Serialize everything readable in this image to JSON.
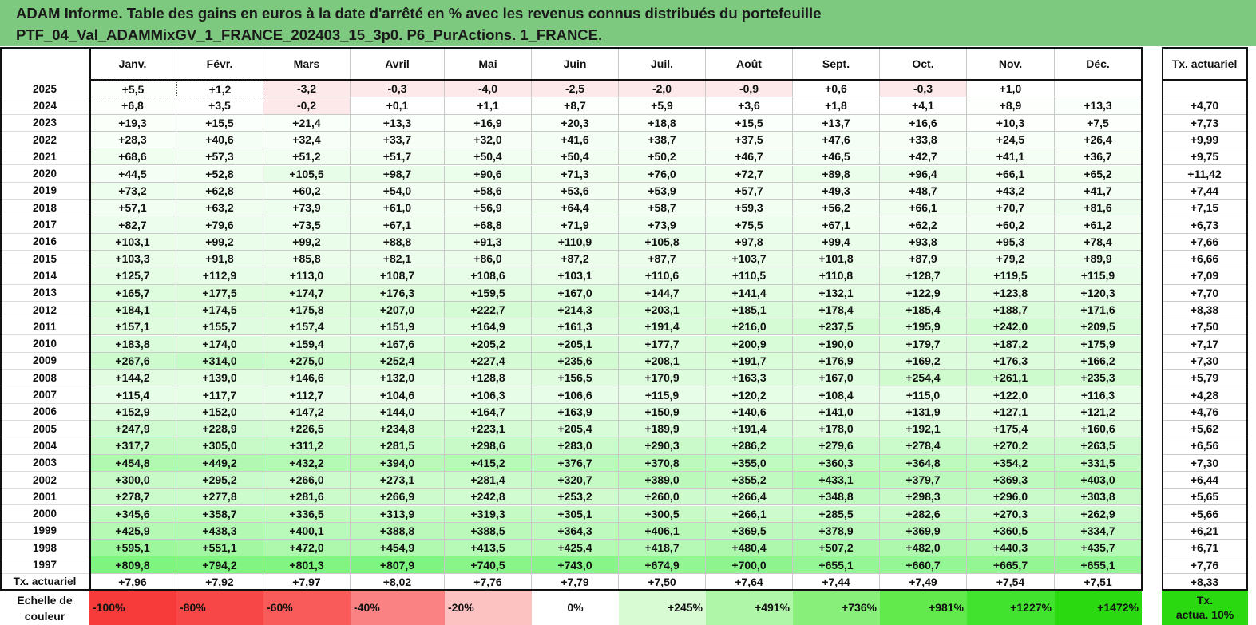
{
  "title_line1": "ADAM Informe. Table des gains en euros à la date d'arrêté en % avec les revenus connus distribués du portefeuille",
  "title_line2": "PTF_04_Val_ADAMMixGV_1_FRANCE_202403_15_3p0. P6_PurActions. 1_FRANCE.",
  "months": [
    "Janv.",
    "Févr.",
    "Mars",
    "Avril",
    "Mai",
    "Juin",
    "Juil.",
    "Août",
    "Sept.",
    "Oct.",
    "Nov.",
    "Déc."
  ],
  "rate_header": "Tx. actuariel",
  "rows": [
    {
      "year": "2025",
      "values": [
        "+5,5",
        "+1,2",
        "-3,2",
        "-0,3",
        "-4,0",
        "-2,5",
        "-2,0",
        "-0,9",
        "+0,6",
        "-0,3",
        "+1,0",
        ""
      ],
      "rate": ""
    },
    {
      "year": "2024",
      "values": [
        "+6,8",
        "+3,5",
        "-0,2",
        "+0,1",
        "+1,1",
        "+8,7",
        "+5,9",
        "+3,6",
        "+1,8",
        "+4,1",
        "+8,9",
        "+13,3"
      ],
      "rate": "+4,70"
    },
    {
      "year": "2023",
      "values": [
        "+19,3",
        "+15,5",
        "+21,4",
        "+13,3",
        "+16,9",
        "+20,3",
        "+18,8",
        "+15,5",
        "+13,7",
        "+16,6",
        "+10,3",
        "+7,5"
      ],
      "rate": "+7,73"
    },
    {
      "year": "2022",
      "values": [
        "+28,3",
        "+40,6",
        "+32,4",
        "+33,7",
        "+32,0",
        "+41,6",
        "+38,7",
        "+37,5",
        "+47,6",
        "+33,8",
        "+24,5",
        "+26,4"
      ],
      "rate": "+9,99"
    },
    {
      "year": "2021",
      "values": [
        "+68,6",
        "+57,3",
        "+51,2",
        "+51,7",
        "+50,4",
        "+50,4",
        "+50,2",
        "+46,7",
        "+46,5",
        "+42,7",
        "+41,1",
        "+36,7"
      ],
      "rate": "+9,75"
    },
    {
      "year": "2020",
      "values": [
        "+44,5",
        "+52,8",
        "+105,5",
        "+98,7",
        "+90,6",
        "+71,3",
        "+76,0",
        "+72,7",
        "+89,8",
        "+96,4",
        "+66,1",
        "+65,2"
      ],
      "rate": "+11,42"
    },
    {
      "year": "2019",
      "values": [
        "+73,2",
        "+62,8",
        "+60,2",
        "+54,0",
        "+58,6",
        "+53,6",
        "+53,9",
        "+57,7",
        "+49,3",
        "+48,7",
        "+43,2",
        "+41,7"
      ],
      "rate": "+7,44"
    },
    {
      "year": "2018",
      "values": [
        "+57,1",
        "+63,2",
        "+73,9",
        "+61,0",
        "+56,9",
        "+64,4",
        "+58,7",
        "+59,3",
        "+56,2",
        "+66,1",
        "+70,7",
        "+81,6"
      ],
      "rate": "+7,15"
    },
    {
      "year": "2017",
      "values": [
        "+82,7",
        "+79,6",
        "+73,5",
        "+67,1",
        "+68,8",
        "+71,9",
        "+73,9",
        "+75,5",
        "+67,1",
        "+62,2",
        "+60,2",
        "+61,2"
      ],
      "rate": "+6,73"
    },
    {
      "year": "2016",
      "values": [
        "+103,1",
        "+99,2",
        "+99,2",
        "+88,8",
        "+91,3",
        "+110,9",
        "+105,8",
        "+97,8",
        "+99,4",
        "+93,8",
        "+95,3",
        "+78,4"
      ],
      "rate": "+7,66"
    },
    {
      "year": "2015",
      "values": [
        "+103,3",
        "+91,8",
        "+85,8",
        "+82,1",
        "+86,0",
        "+87,2",
        "+87,7",
        "+103,7",
        "+101,8",
        "+87,9",
        "+79,2",
        "+89,9"
      ],
      "rate": "+6,66"
    },
    {
      "year": "2014",
      "values": [
        "+125,7",
        "+112,9",
        "+113,0",
        "+108,7",
        "+108,6",
        "+103,1",
        "+110,6",
        "+110,5",
        "+110,8",
        "+128,7",
        "+119,5",
        "+115,9"
      ],
      "rate": "+7,09"
    },
    {
      "year": "2013",
      "values": [
        "+165,7",
        "+177,5",
        "+174,7",
        "+176,3",
        "+159,5",
        "+167,0",
        "+144,7",
        "+141,4",
        "+132,1",
        "+122,9",
        "+123,8",
        "+120,3"
      ],
      "rate": "+7,70"
    },
    {
      "year": "2012",
      "values": [
        "+184,1",
        "+174,5",
        "+175,8",
        "+207,0",
        "+222,7",
        "+214,3",
        "+203,1",
        "+185,1",
        "+178,4",
        "+185,4",
        "+188,7",
        "+171,6"
      ],
      "rate": "+8,38"
    },
    {
      "year": "2011",
      "values": [
        "+157,1",
        "+155,7",
        "+157,4",
        "+151,9",
        "+164,9",
        "+161,3",
        "+191,4",
        "+216,0",
        "+237,5",
        "+195,9",
        "+242,0",
        "+209,5"
      ],
      "rate": "+7,50"
    },
    {
      "year": "2010",
      "values": [
        "+183,8",
        "+174,0",
        "+159,4",
        "+167,6",
        "+205,2",
        "+205,1",
        "+177,7",
        "+200,9",
        "+190,0",
        "+179,7",
        "+187,2",
        "+175,9"
      ],
      "rate": "+7,17"
    },
    {
      "year": "2009",
      "values": [
        "+267,6",
        "+314,0",
        "+275,0",
        "+252,4",
        "+227,4",
        "+235,6",
        "+208,1",
        "+191,7",
        "+176,9",
        "+169,2",
        "+176,3",
        "+166,2"
      ],
      "rate": "+7,30"
    },
    {
      "year": "2008",
      "values": [
        "+144,2",
        "+139,0",
        "+146,6",
        "+132,0",
        "+128,8",
        "+156,5",
        "+170,9",
        "+163,3",
        "+167,0",
        "+254,4",
        "+261,1",
        "+235,3"
      ],
      "rate": "+5,79"
    },
    {
      "year": "2007",
      "values": [
        "+115,4",
        "+117,7",
        "+112,7",
        "+104,6",
        "+106,3",
        "+106,6",
        "+115,9",
        "+120,2",
        "+108,4",
        "+115,0",
        "+122,0",
        "+116,3"
      ],
      "rate": "+4,28"
    },
    {
      "year": "2006",
      "values": [
        "+152,9",
        "+152,0",
        "+147,2",
        "+144,0",
        "+164,7",
        "+163,9",
        "+150,9",
        "+140,6",
        "+141,0",
        "+131,9",
        "+127,1",
        "+121,2"
      ],
      "rate": "+4,76"
    },
    {
      "year": "2005",
      "values": [
        "+247,9",
        "+228,9",
        "+226,5",
        "+234,8",
        "+223,1",
        "+205,4",
        "+189,9",
        "+191,4",
        "+178,0",
        "+192,1",
        "+175,4",
        "+160,6"
      ],
      "rate": "+5,62"
    },
    {
      "year": "2004",
      "values": [
        "+317,7",
        "+305,0",
        "+311,2",
        "+281,5",
        "+298,6",
        "+283,0",
        "+290,3",
        "+286,2",
        "+279,6",
        "+278,4",
        "+270,2",
        "+263,5"
      ],
      "rate": "+6,56"
    },
    {
      "year": "2003",
      "values": [
        "+454,8",
        "+449,2",
        "+432,2",
        "+394,0",
        "+415,2",
        "+376,7",
        "+370,8",
        "+355,0",
        "+360,3",
        "+364,8",
        "+354,2",
        "+331,5"
      ],
      "rate": "+7,30"
    },
    {
      "year": "2002",
      "values": [
        "+300,0",
        "+295,2",
        "+266,0",
        "+273,1",
        "+281,4",
        "+320,7",
        "+389,0",
        "+355,2",
        "+433,1",
        "+379,7",
        "+369,3",
        "+403,0"
      ],
      "rate": "+6,44"
    },
    {
      "year": "2001",
      "values": [
        "+278,7",
        "+277,8",
        "+281,6",
        "+266,9",
        "+242,8",
        "+253,2",
        "+260,0",
        "+266,4",
        "+348,8",
        "+298,3",
        "+296,0",
        "+303,8"
      ],
      "rate": "+5,65"
    },
    {
      "year": "2000",
      "values": [
        "+345,6",
        "+358,7",
        "+336,5",
        "+313,9",
        "+319,3",
        "+305,1",
        "+300,5",
        "+266,1",
        "+285,5",
        "+282,6",
        "+270,3",
        "+262,9"
      ],
      "rate": "+5,66"
    },
    {
      "year": "1999",
      "values": [
        "+425,9",
        "+438,3",
        "+400,1",
        "+388,8",
        "+388,5",
        "+364,3",
        "+406,1",
        "+369,5",
        "+378,9",
        "+369,9",
        "+360,5",
        "+334,7"
      ],
      "rate": "+6,21"
    },
    {
      "year": "1998",
      "values": [
        "+595,1",
        "+551,1",
        "+472,0",
        "+454,9",
        "+413,5",
        "+425,4",
        "+418,7",
        "+480,4",
        "+507,2",
        "+482,0",
        "+440,3",
        "+435,7"
      ],
      "rate": "+6,71"
    },
    {
      "year": "1997",
      "values": [
        "+809,8",
        "+794,2",
        "+801,3",
        "+807,9",
        "+740,5",
        "+743,0",
        "+674,9",
        "+700,0",
        "+655,1",
        "+660,7",
        "+665,7",
        "+655,1"
      ],
      "rate": "+7,76"
    }
  ],
  "footer_row": {
    "label": "Tx. actuariel",
    "values": [
      "+7,96",
      "+7,92",
      "+7,97",
      "+8,02",
      "+7,76",
      "+7,79",
      "+7,50",
      "+7,64",
      "+7,44",
      "+7,49",
      "+7,54",
      "+7,51"
    ],
    "rate": "+8,33"
  },
  "legend": {
    "label_line1": "Echelle de",
    "label_line2": "couleur",
    "steps": [
      {
        "text": "-100%",
        "color": "#f73b3b",
        "align": "left"
      },
      {
        "text": "-80%",
        "color": "#f84747",
        "align": "left"
      },
      {
        "text": "-60%",
        "color": "#f95a5a",
        "align": "left"
      },
      {
        "text": "-40%",
        "color": "#fa8282",
        "align": "left"
      },
      {
        "text": "-20%",
        "color": "#fcc2c2",
        "align": "left"
      },
      {
        "text": "0%",
        "color": "#ffffff",
        "align": "center"
      },
      {
        "text": "+245%",
        "color": "#d8fbd4",
        "align": "right"
      },
      {
        "text": "+491%",
        "color": "#b0f6a8",
        "align": "right"
      },
      {
        "text": "+736%",
        "color": "#88f07a",
        "align": "right"
      },
      {
        "text": "+981%",
        "color": "#62ea4c",
        "align": "right"
      },
      {
        "text": "+1227%",
        "color": "#42e32e",
        "align": "right"
      },
      {
        "text": "+1472%",
        "color": "#2ad910",
        "align": "right"
      }
    ],
    "rate_line1": "Tx.",
    "rate_line2": "actua. 10%",
    "rate_color": "#2ad910"
  },
  "colors": {
    "header_bg": "#7dc97f",
    "negative": "#fde8e8",
    "positive_max": "#7ef47e"
  }
}
